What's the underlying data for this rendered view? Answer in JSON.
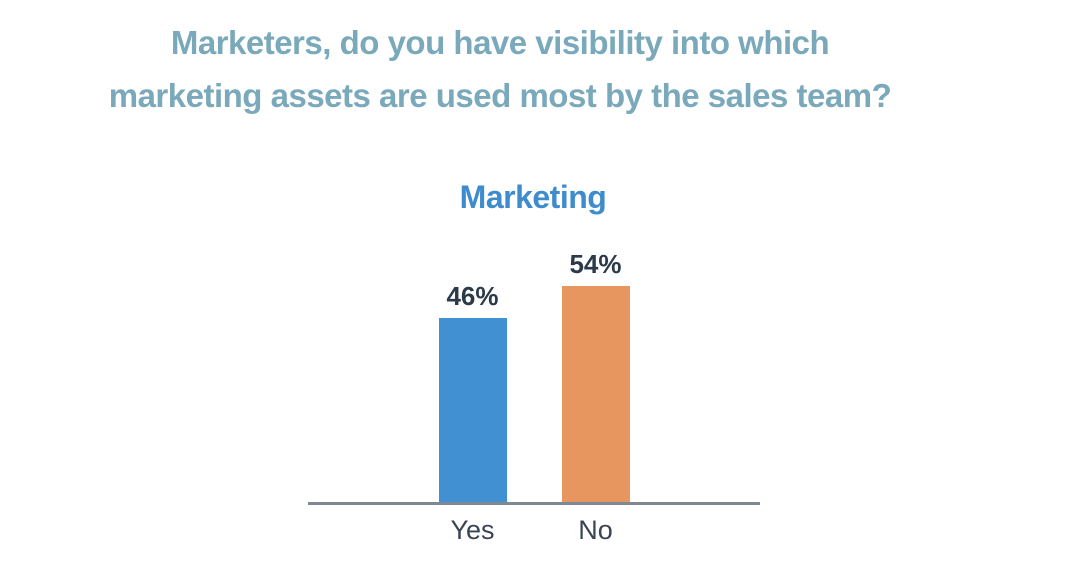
{
  "title": {
    "lines": [
      "Marketers, do you have visibility into which",
      "marketing assets are used most by the sales team?"
    ]
  },
  "chart_data": {
    "type": "bar",
    "title": "Marketing",
    "categories": [
      "Yes",
      "No"
    ],
    "values": [
      46,
      54
    ],
    "value_labels": [
      "46%",
      "54%"
    ],
    "bar_colors": [
      "#4191D2",
      "#E8965F"
    ],
    "ylim": [
      0,
      60
    ],
    "xlabel": "",
    "ylabel": "",
    "grid": false,
    "legend": "none",
    "value_labels_position": "above-bars",
    "axis_shown": "x-only"
  },
  "colors": {
    "question_title_text": "#79A9BA",
    "chart_title_text": "#3E8CCE",
    "value_label_text": "#2B3A48",
    "category_label_text": "#3A4553",
    "axis_line": "#7E8995",
    "background": "#FFFFFF"
  }
}
